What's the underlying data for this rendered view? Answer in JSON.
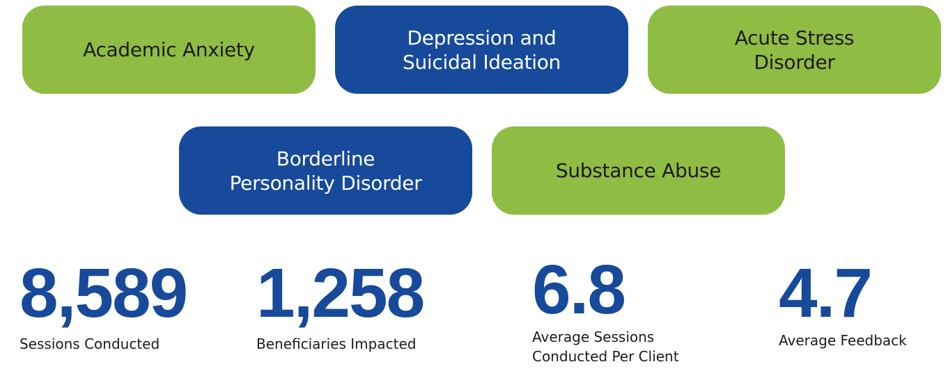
{
  "topics": [
    {
      "lines": [
        "Academic Anxiety"
      ],
      "color": "#8fbc43",
      "text_color": "#1b1b1b"
    },
    {
      "lines": [
        "Depression and",
        "Suicidal Ideation"
      ],
      "color": "#174a9b",
      "text_color": "#ffffff"
    },
    {
      "lines": [
        "Acute Stress",
        "Disorder"
      ],
      "color": "#8fbc43",
      "text_color": "#1b1b1b"
    },
    {
      "lines": [
        "Borderline",
        "Personality Disorder"
      ],
      "color": "#174a9b",
      "text_color": "#ffffff"
    },
    {
      "lines": [
        "Substance Abuse"
      ],
      "color": "#8fbc43",
      "text_color": "#1b1b1b"
    }
  ],
  "stats": [
    {
      "value": "8,589",
      "label": [
        "Sessions Conducted"
      ]
    },
    {
      "value": "1,258",
      "label": [
        "Beneficiaries Impacted"
      ]
    },
    {
      "value": "6.8",
      "label": [
        "Average Sessions",
        "Conducted Per Client"
      ]
    },
    {
      "value": "4.7",
      "label": [
        "Average Feedback"
      ]
    }
  ]
}
